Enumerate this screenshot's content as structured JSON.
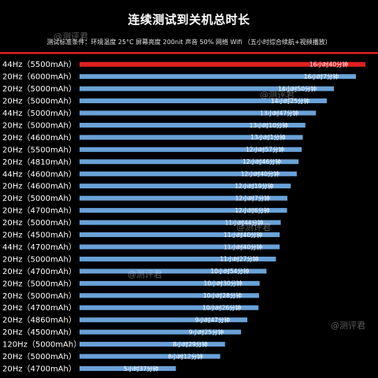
{
  "chart_data": {
    "type": "bar",
    "title": "连续测试到关机总时长",
    "subtitle": "测试标准条件：环境温度 25°C  屏幕亮度 200nit  声音 50%  网络 Wifi  （五小时综合续航+视频播放）",
    "orientation": "horizontal",
    "highlight_color": "#e02020",
    "bar_color": "#6aa2d8",
    "categories": [
      "44Hz（5500mAh）",
      "20Hz（6000mAh）",
      "20Hz（5000mAh）",
      "20Hz（5000mAh）",
      "44Hz（5000mAh）",
      "20Hz（5000mAh）",
      "20Hz（4600mAh）",
      "20Hz（5500mAh）",
      "20Hz（4810mAh）",
      "44Hz（4600mAh）",
      "20Hz（4600mAh）",
      "20Hz（5000mAh）",
      "20Hz（4700mAh）",
      "20Hz（5000mAh）",
      "20Hz（4500mAh）",
      "44Hz（4700mAh）",
      "20Hz（5000mAh）",
      "20Hz（4700mAh）",
      "20Hz（5000mAh）",
      "20Hz（5000mAh）",
      "20Hz（4700mAh）",
      "20Hz（4860mAh）",
      "20Hz（4500mAh）",
      "120Hz（5000mAh）",
      "20Hz（5000mAh）",
      "20Hz（4700mAh）"
    ],
    "values": [
      1000,
      967,
      890,
      865,
      827,
      790,
      781,
      777,
      766,
      760,
      739,
      727,
      726,
      704,
      700,
      700,
      687,
      654,
      630,
      628,
      626,
      587,
      565,
      509,
      492,
      337
    ],
    "value_labels": [
      "16小时40分钟",
      "16小时7分钟",
      "14小时50分钟",
      "14小时25分钟",
      "13小时47分钟",
      "13小时10分钟",
      "13小时1分钟",
      "12小时57分钟",
      "12小时46分钟",
      "12小时40分钟",
      "12小时19分钟",
      "12小时7分钟",
      "12小时6分钟",
      "11小时44分钟",
      "11小时40分钟",
      "11小时40分钟",
      "11小时27分钟",
      "10小时54分钟",
      "10小时30分钟",
      "10小时28分钟",
      "10小时26分钟",
      "9小时47分钟",
      "9小时25分钟",
      "8小时29分钟",
      "8小时12分钟",
      "5小时37分钟"
    ],
    "xlim": [
      0,
      1000
    ],
    "xlabel": "",
    "ylabel": "",
    "grid": false
  },
  "watermarks": [
    "@测评君",
    "@测评君",
    "@测评君",
    "@测评君",
    "@测评君"
  ]
}
